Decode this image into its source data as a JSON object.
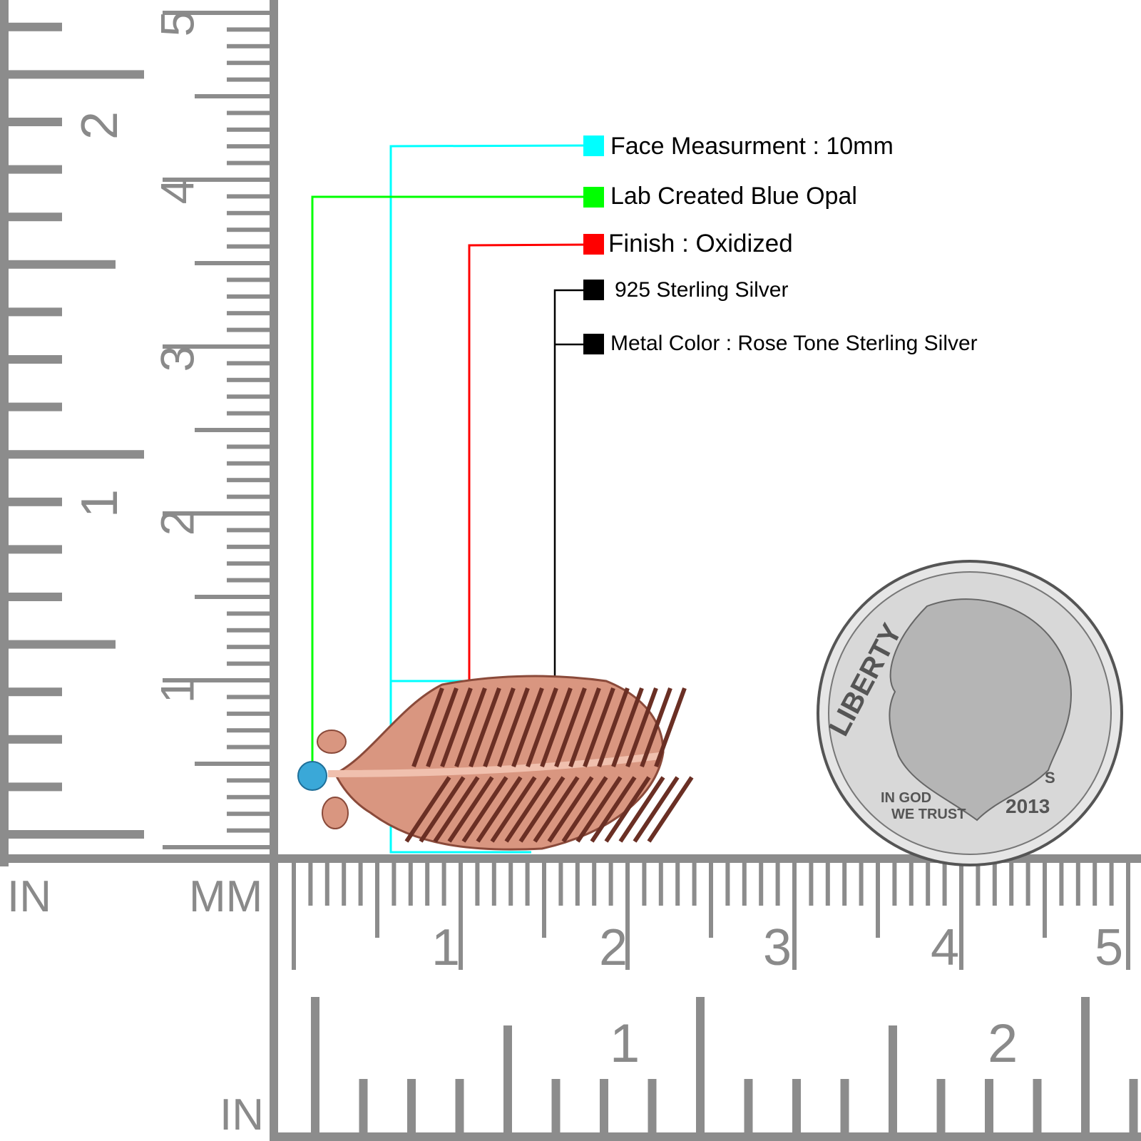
{
  "colors": {
    "ruler": "#8c8c8c",
    "cyan": "#00ffff",
    "green": "#00ff00",
    "red": "#ff0000",
    "black": "#000000",
    "rose": "#d99680",
    "opal": "#3aa8d8",
    "coin": "#c8c8c8"
  },
  "specs": [
    {
      "label": "Face Measurment : 10mm",
      "color": "#00ffff"
    },
    {
      "label": "Lab Created Blue Opal",
      "color": "#00ff00"
    },
    {
      "label": "Finish : Oxidized",
      "color": "#ff0000"
    },
    {
      "label": "925 Sterling Silver",
      "color": "#000000"
    },
    {
      "label": "Metal Color : Rose Tone Sterling Silver",
      "color": "#000000"
    }
  ],
  "rulers": {
    "left_unit_in": "IN",
    "left_unit_mm": "MM",
    "bottom_unit_in": "IN",
    "left_inch_labels": [
      "1",
      "2"
    ],
    "left_cm_labels": [
      "1",
      "2",
      "3",
      "4",
      "5"
    ],
    "bottom_cm_labels": [
      "1",
      "2",
      "3",
      "4",
      "5"
    ],
    "bottom_inch_labels": [
      "1",
      "2"
    ]
  },
  "coin": {
    "liberty": "LIBERTY",
    "motto_1": "IN GOD",
    "motto_2": "WE TRUST",
    "year": "2013",
    "mint": "S"
  }
}
